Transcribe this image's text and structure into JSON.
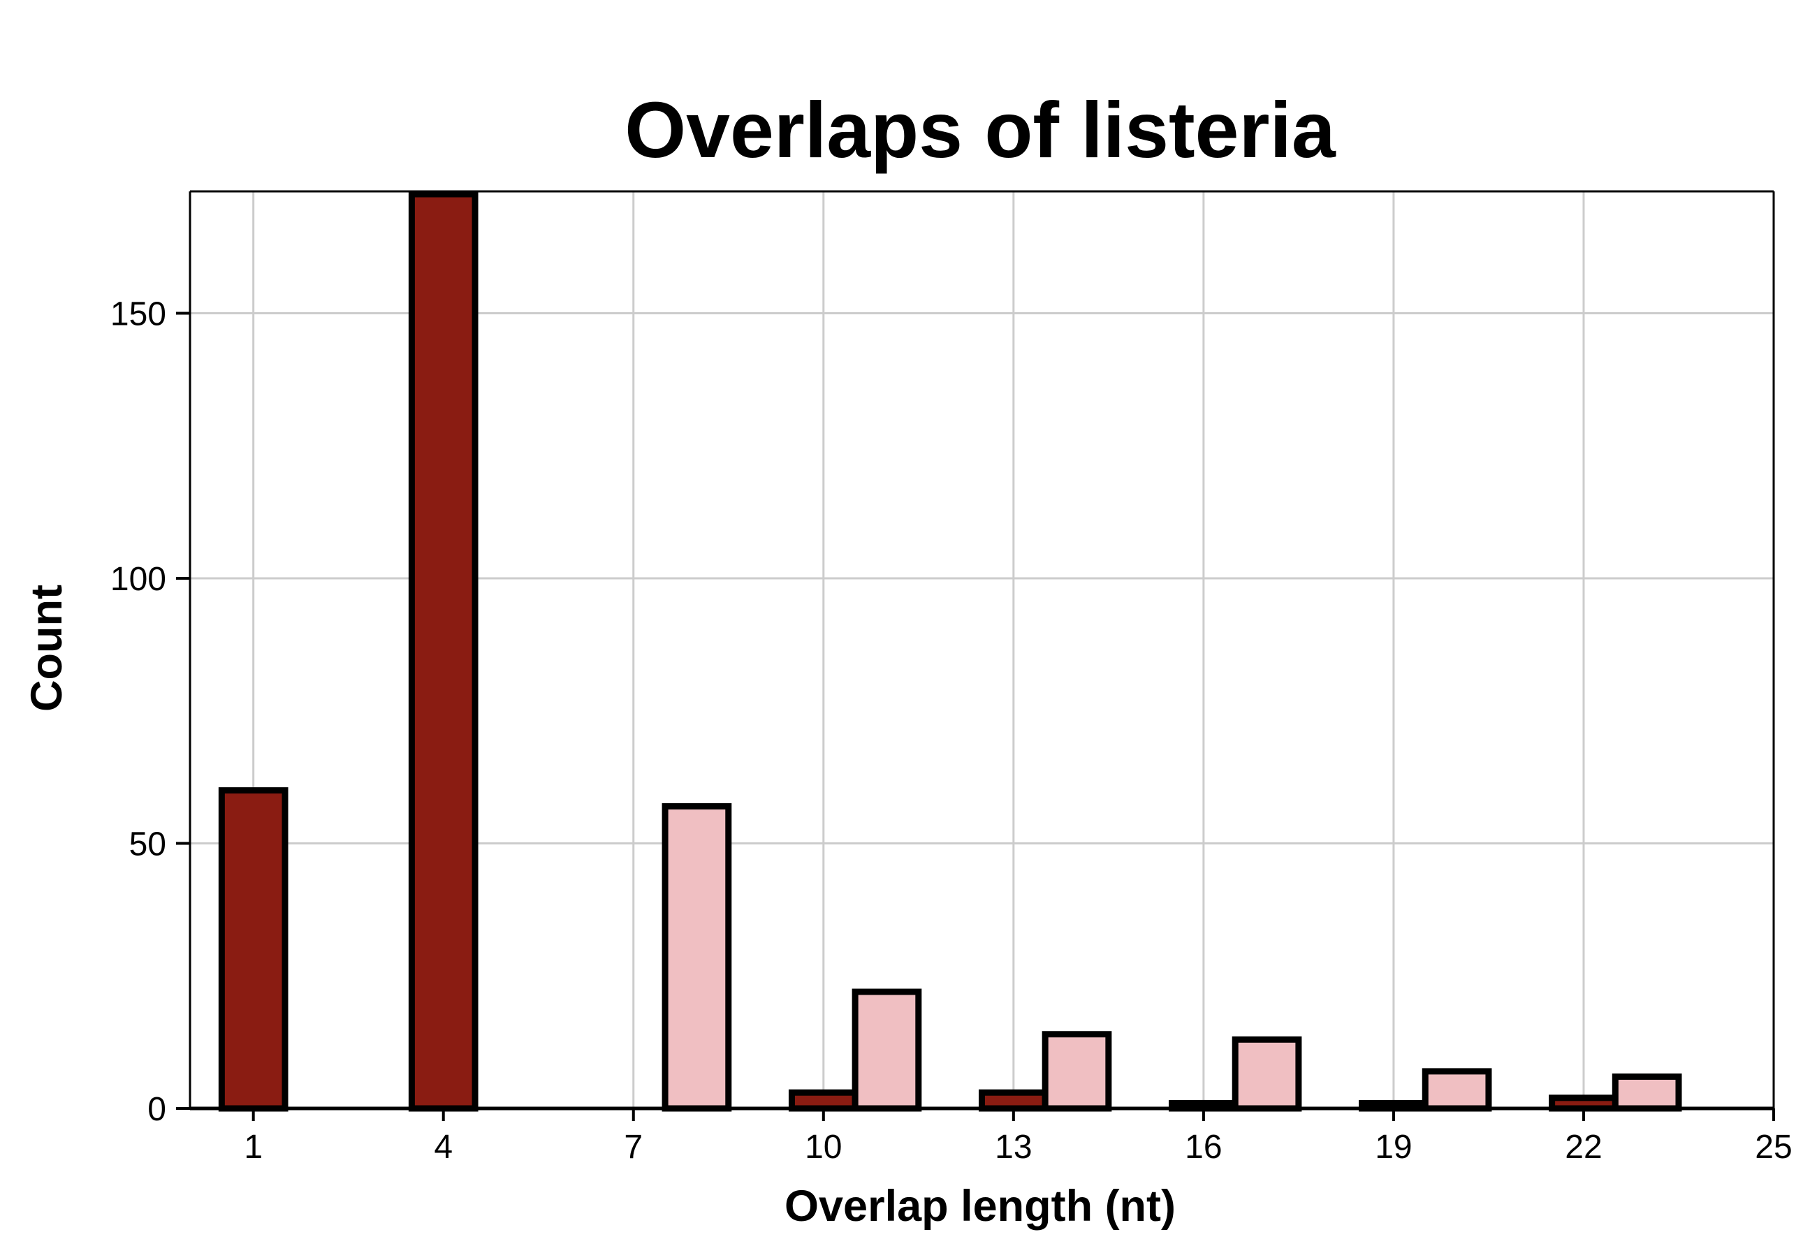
{
  "chart_data": {
    "type": "bar",
    "title": "Overlaps of listeria",
    "xlabel": "Overlap length (nt)",
    "ylabel": "Count",
    "xlim": [
      0,
      25
    ],
    "ylim": [
      0,
      173
    ],
    "x_ticks": [
      1,
      4,
      7,
      10,
      13,
      16,
      19,
      22,
      25
    ],
    "y_ticks": [
      0,
      50,
      100,
      150
    ],
    "grid": true,
    "legend": "none",
    "x": [
      1,
      2,
      3,
      4,
      5,
      6,
      7,
      8,
      9,
      10,
      11,
      12,
      13,
      14,
      15,
      16,
      17,
      18,
      19,
      20,
      21,
      22,
      23,
      24
    ],
    "series": [
      {
        "color": "#8a1c12",
        "values": [
          60,
          0,
          0,
          173,
          0,
          0,
          0,
          0,
          0,
          3,
          0,
          0,
          3,
          0,
          0,
          1,
          0,
          0,
          1,
          0,
          0,
          2,
          0,
          0
        ]
      },
      {
        "color": "#f0bfc2",
        "values": [
          0,
          0,
          0,
          0,
          0,
          0,
          0,
          57,
          0,
          0,
          22,
          0,
          0,
          14,
          0,
          0,
          13,
          0,
          0,
          7,
          0,
          0,
          6,
          0
        ]
      }
    ]
  }
}
